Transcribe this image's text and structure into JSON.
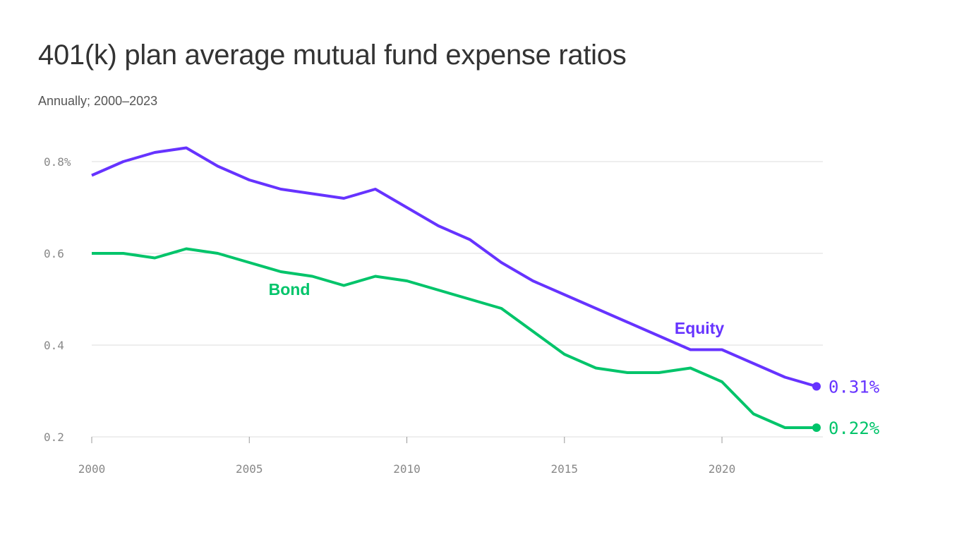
{
  "title": "401(k) plan average mutual fund expense ratios",
  "subtitle": "Annually; 2000–2023",
  "chart_data": {
    "type": "line",
    "x": [
      2000,
      2001,
      2002,
      2003,
      2004,
      2005,
      2006,
      2007,
      2008,
      2009,
      2010,
      2011,
      2012,
      2013,
      2014,
      2015,
      2016,
      2017,
      2018,
      2019,
      2020,
      2021,
      2022,
      2023
    ],
    "series": [
      {
        "name": "Equity",
        "color": "#6633ff",
        "end_label": "0.31%",
        "values": [
          0.77,
          0.8,
          0.82,
          0.83,
          0.79,
          0.76,
          0.74,
          0.73,
          0.72,
          0.74,
          0.7,
          0.66,
          0.63,
          0.58,
          0.54,
          0.51,
          0.48,
          0.45,
          0.42,
          0.39,
          0.39,
          0.36,
          0.33,
          0.31
        ]
      },
      {
        "name": "Bond",
        "color": "#00c46a",
        "end_label": "0.22%",
        "values": [
          0.6,
          0.6,
          0.59,
          0.61,
          0.6,
          0.58,
          0.56,
          0.55,
          0.53,
          0.55,
          0.54,
          0.52,
          0.5,
          0.48,
          0.43,
          0.38,
          0.35,
          0.34,
          0.34,
          0.35,
          0.32,
          0.25,
          0.22,
          0.22
        ]
      }
    ],
    "y_ticks": [
      "0.8%",
      "0.6",
      "0.4",
      "0.2"
    ],
    "y_tick_values": [
      0.8,
      0.6,
      0.4,
      0.2
    ],
    "x_ticks": [
      "2000",
      "2005",
      "2010",
      "2015",
      "2020"
    ],
    "x_tick_values": [
      2000,
      2005,
      2010,
      2015,
      2020
    ],
    "xlim": [
      2000,
      2023
    ],
    "ylim": [
      0.2,
      0.8
    ],
    "grid": "horizontal",
    "xlabel": "",
    "ylabel": ""
  }
}
